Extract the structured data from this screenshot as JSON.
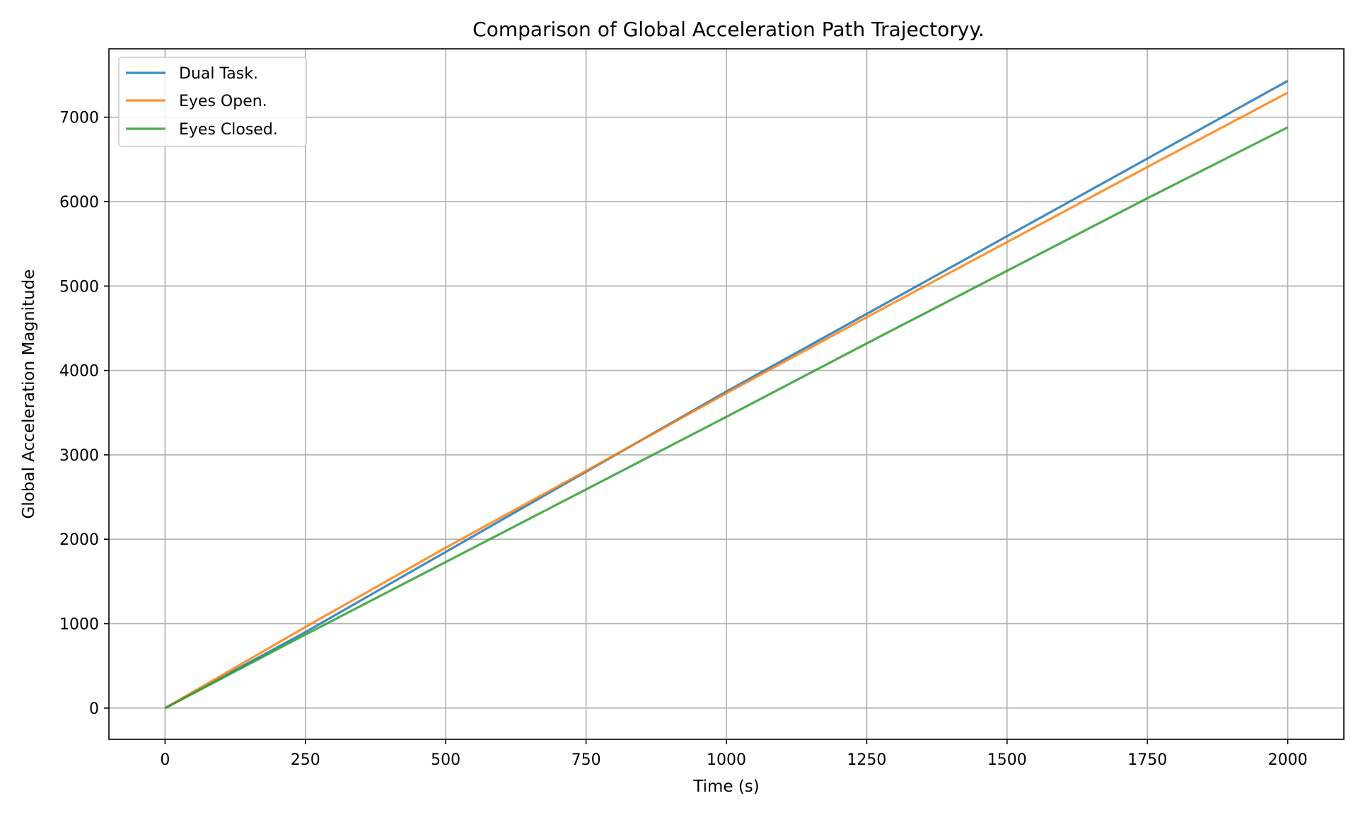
{
  "chart_data": {
    "type": "line",
    "title": "Comparison of Global Acceleration Path Trajectoryy.",
    "xlabel": "Time (s)",
    "ylabel": "Global Acceleration Magnitude",
    "xlim": [
      -100,
      2100
    ],
    "ylim": [
      -370,
      7810
    ],
    "xticks": [
      0,
      250,
      500,
      750,
      1000,
      1250,
      1500,
      1750,
      2000
    ],
    "yticks": [
      0,
      1000,
      2000,
      3000,
      4000,
      5000,
      6000,
      7000
    ],
    "grid": true,
    "legend_position": "upper left",
    "series": [
      {
        "name": "Dual Task.",
        "color": "#1f77b4",
        "x": [
          0,
          250,
          500,
          750,
          1000,
          1250,
          1500,
          1750,
          2000
        ],
        "y": [
          0,
          900,
          1850,
          2800,
          3750,
          4670,
          5590,
          6510,
          7430
        ]
      },
      {
        "name": "Eyes Open.",
        "color": "#ff7f0e",
        "x": [
          0,
          250,
          500,
          750,
          1000,
          1250,
          1500,
          1750,
          2000
        ],
        "y": [
          0,
          960,
          1900,
          2810,
          3730,
          4630,
          5520,
          6410,
          7290
        ]
      },
      {
        "name": "Eyes Closed.",
        "color": "#2ca02c",
        "x": [
          0,
          250,
          500,
          750,
          1000,
          1250,
          1500,
          1750,
          2000
        ],
        "y": [
          0,
          870,
          1730,
          2590,
          3450,
          4320,
          5180,
          6040,
          6880
        ]
      }
    ]
  }
}
